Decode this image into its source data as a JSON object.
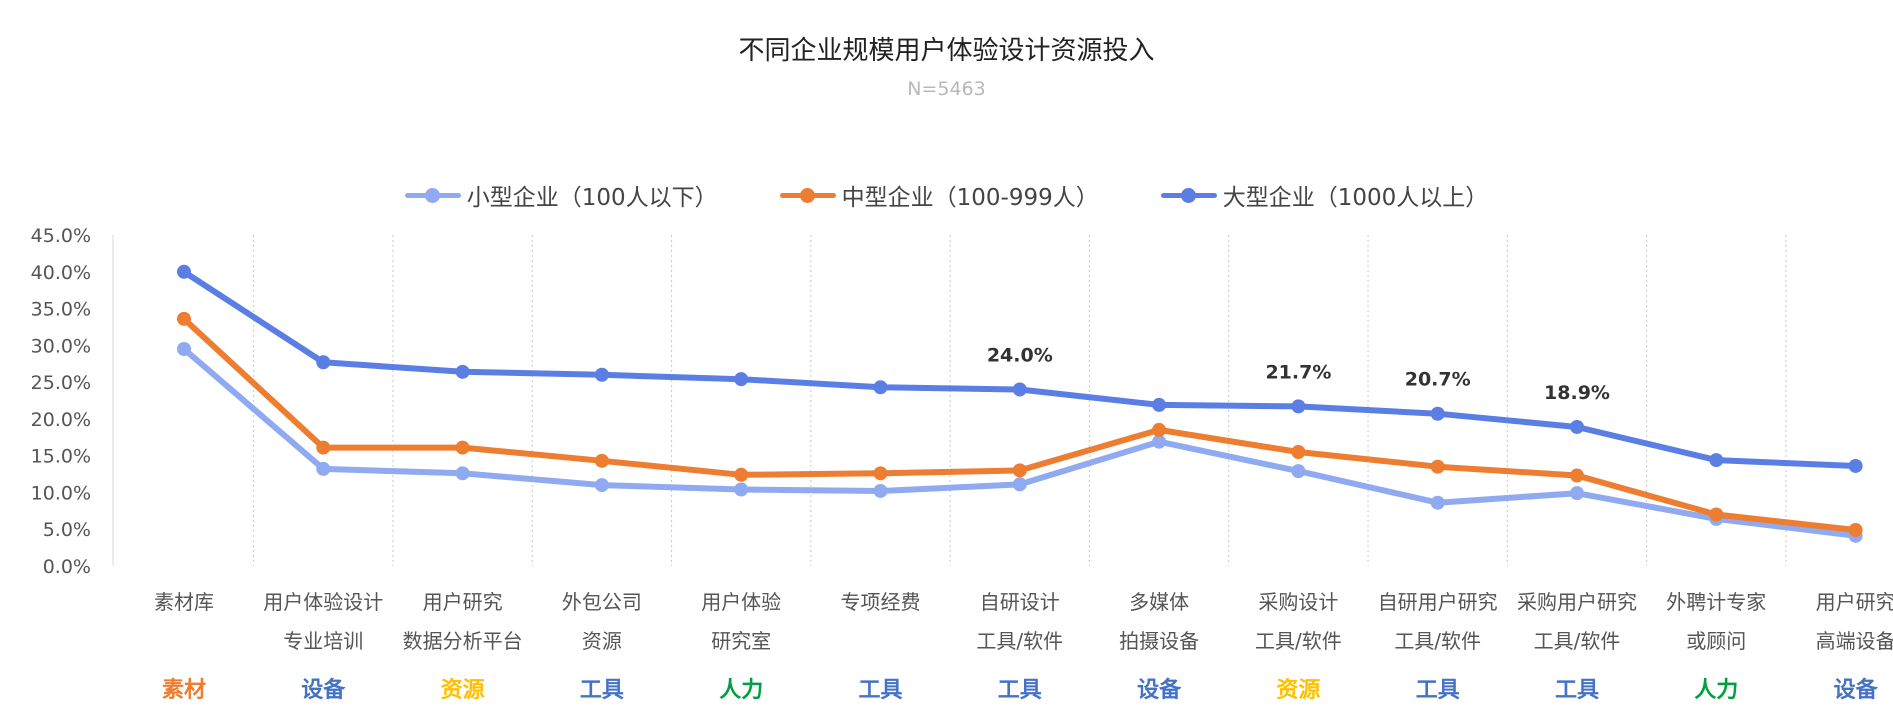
{
  "chart_data": {
    "type": "line",
    "title": "不同企业规模用户体验设计资源投入",
    "subtitle": "N=5463",
    "ylim": [
      0,
      45
    ],
    "yticks": [
      "0.0%",
      "5.0%",
      "10.0%",
      "15.0%",
      "20.0%",
      "25.0%",
      "30.0%",
      "35.0%",
      "40.0%",
      "45.0%"
    ],
    "legend_position": "top-center",
    "categories": [
      [
        "素材库",
        ""
      ],
      [
        "用户体验设计",
        "专业培训"
      ],
      [
        "用户研究",
        "数据分析平台"
      ],
      [
        "外包公司",
        "资源"
      ],
      [
        "用户体验",
        "研究室"
      ],
      [
        "专项经费",
        ""
      ],
      [
        "自研设计",
        "工具/软件"
      ],
      [
        "多媒体",
        "拍摄设备"
      ],
      [
        "采购设计",
        "工具/软件"
      ],
      [
        "自研用户研究",
        "工具/软件"
      ],
      [
        "采购用户研究",
        "工具/软件"
      ],
      [
        "外聘计专家",
        "或顾问"
      ],
      [
        "用户研究",
        "高端设备"
      ]
    ],
    "tags": [
      {
        "text": "素材",
        "color": "#ed7d31"
      },
      {
        "text": "设备",
        "color": "#4472c4"
      },
      {
        "text": "资源",
        "color": "#ffc000"
      },
      {
        "text": "工具",
        "color": "#4472c4"
      },
      {
        "text": "人力",
        "color": "#00a040"
      },
      {
        "text": "工具",
        "color": "#4472c4"
      },
      {
        "text": "工具",
        "color": "#4472c4"
      },
      {
        "text": "设备",
        "color": "#4472c4"
      },
      {
        "text": "资源",
        "color": "#ffc000"
      },
      {
        "text": "工具",
        "color": "#4472c4"
      },
      {
        "text": "工具",
        "color": "#4472c4"
      },
      {
        "text": "人力",
        "color": "#00a040"
      },
      {
        "text": "设备",
        "color": "#4472c4"
      }
    ],
    "series": [
      {
        "name": "小型企业（100人以下）",
        "color": "#8faaf0",
        "values": [
          29.5,
          13.2,
          12.6,
          11.0,
          10.4,
          10.2,
          11.1,
          16.9,
          12.9,
          8.6,
          9.9,
          6.4,
          4.1
        ]
      },
      {
        "name": "中型企业（100-999人）",
        "color": "#ed7d31",
        "values": [
          33.6,
          16.1,
          16.1,
          14.3,
          12.4,
          12.6,
          13.0,
          18.5,
          15.5,
          13.5,
          12.3,
          7.0,
          4.9
        ]
      },
      {
        "name": "大型企业（1000人以上）",
        "color": "#5b7ee5",
        "values": [
          40.0,
          27.7,
          26.4,
          26.0,
          25.4,
          24.3,
          24.0,
          21.9,
          21.7,
          20.7,
          18.9,
          14.4,
          13.6
        ]
      }
    ],
    "data_labels": [
      {
        "series": 2,
        "index": 6,
        "text": "24.0%"
      },
      {
        "series": 2,
        "index": 8,
        "text": "21.7%"
      },
      {
        "series": 2,
        "index": 9,
        "text": "20.7%"
      },
      {
        "series": 2,
        "index": 10,
        "text": "18.9%"
      }
    ]
  }
}
